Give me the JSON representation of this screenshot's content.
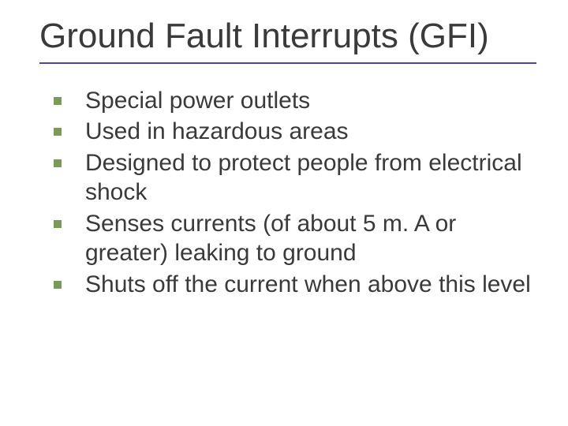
{
  "title": "Ground Fault Interrupts (GFI)",
  "title_color": "#3a3a3a",
  "title_fontsize": 44,
  "underline_color": "#4a4a88",
  "bullet_marker_color": "#7a9a5a",
  "bullet_marker_size": 10,
  "bullet_fontsize": 30,
  "bullet_text_color": "#3a3a3a",
  "background_color": "#ffffff",
  "bullets": [
    "Special power outlets",
    "Used in hazardous areas",
    "Designed to protect people from electrical shock",
    "Senses currents (of about 5 m. A or greater) leaking to ground",
    "Shuts off the current when above this level"
  ]
}
